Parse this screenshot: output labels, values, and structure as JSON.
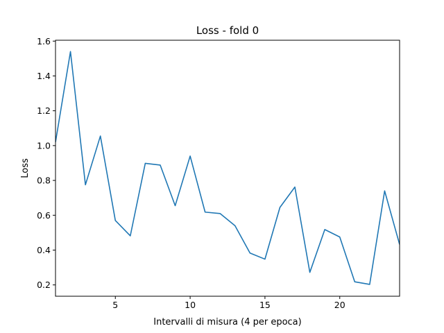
{
  "chart_data": {
    "type": "line",
    "title": "Loss - fold 0",
    "xlabel": "Intervalli di misura (4 per epoca)",
    "ylabel": "Loss",
    "xlim": [
      1,
      24
    ],
    "ylim": [
      0.135,
      1.605
    ],
    "xticks": [
      5,
      10,
      15,
      20
    ],
    "yticks": [
      0.2,
      0.4,
      0.6,
      0.8,
      1.0,
      1.2,
      1.4,
      1.6
    ],
    "ytick_labels": [
      "0.2",
      "0.4",
      "0.6",
      "0.8",
      "1.0",
      "1.2",
      "1.4",
      "1.6"
    ],
    "grid": false,
    "series": [
      {
        "color": "#1f77b4",
        "x": [
          1,
          2,
          3,
          4,
          5,
          6,
          7,
          8,
          9,
          10,
          11,
          12,
          13,
          14,
          15,
          16,
          17,
          18,
          19,
          20,
          21,
          22,
          23,
          24
        ],
        "y": [
          1.02,
          1.54,
          0.775,
          1.055,
          0.57,
          0.482,
          0.898,
          0.888,
          0.655,
          0.94,
          0.618,
          0.61,
          0.54,
          0.383,
          0.348,
          0.645,
          0.762,
          0.272,
          0.518,
          0.475,
          0.218,
          0.203,
          0.74,
          0.432
        ]
      }
    ]
  }
}
